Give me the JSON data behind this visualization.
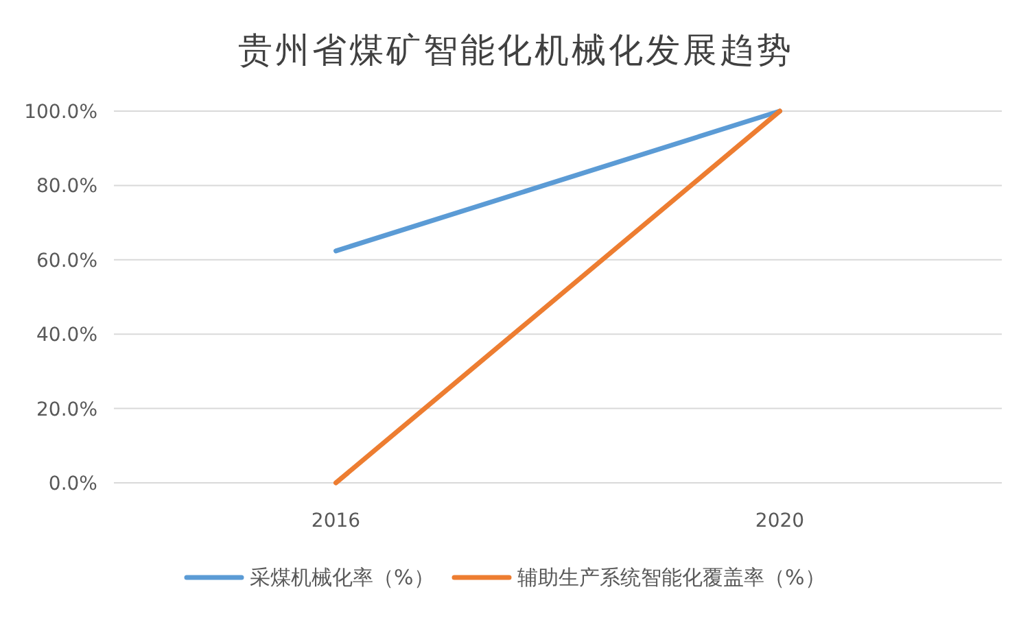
{
  "chart_data": {
    "type": "line",
    "title": "贵州省煤矿智能化机械化发展趋势",
    "categories": [
      "2016",
      "2020"
    ],
    "series": [
      {
        "name": "采煤机械化率（%）",
        "color": "#5b9bd5",
        "values": [
          62.4,
          100
        ]
      },
      {
        "name": "辅助生产系统智能化覆盖率（%）",
        "color": "#ed7d31",
        "values": [
          0,
          100
        ]
      }
    ],
    "ylim": [
      0,
      100
    ],
    "yticks": [
      {
        "value": 0,
        "label": "0.0%"
      },
      {
        "value": 20,
        "label": "20.0%"
      },
      {
        "value": 40,
        "label": "40.0%"
      },
      {
        "value": 60,
        "label": "60.0%"
      },
      {
        "value": 80,
        "label": "80.0%"
      },
      {
        "value": 100,
        "label": "100.0%"
      }
    ],
    "grid": "y",
    "legend": "bottom",
    "marker": "none",
    "line_style": "solid"
  }
}
